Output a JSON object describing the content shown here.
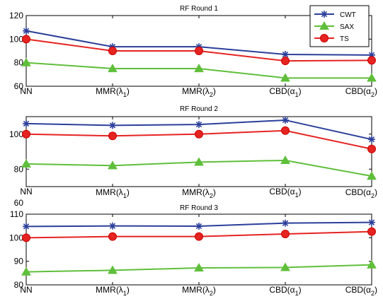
{
  "chart_data": [
    {
      "type": "line",
      "title": "RF Round 1",
      "categories": [
        "NN",
        "MMR(λ1)",
        "MMR(λ2)",
        "CBD(α1)",
        "CBD(α2)"
      ],
      "ylim": [
        60,
        120
      ],
      "yticks": [
        60,
        80,
        100,
        120
      ],
      "series": [
        {
          "name": "CWT",
          "values": [
            107,
            93.5,
            93.5,
            87,
            86.5
          ]
        },
        {
          "name": "SAX",
          "values": [
            80,
            75,
            75,
            67,
            67
          ]
        },
        {
          "name": "TS",
          "values": [
            100,
            90,
            90,
            81.5,
            82
          ]
        }
      ],
      "legend": "top-right",
      "grid": false
    },
    {
      "type": "line",
      "title": "RF Round 2",
      "categories": [
        "NN",
        "MMR(λ1)",
        "MMR(λ2)",
        "CBD(α1)",
        "CBD(α2)"
      ],
      "ylim": [
        70,
        110
      ],
      "yticks": [
        80,
        100
      ],
      "series": [
        {
          "name": "CWT",
          "values": [
            106,
            105,
            105.5,
            108,
            97
          ]
        },
        {
          "name": "SAX",
          "values": [
            83,
            82,
            84,
            85,
            76
          ]
        },
        {
          "name": "TS",
          "values": [
            100,
            99,
            100,
            102,
            91.5
          ]
        }
      ],
      "grid": false
    },
    {
      "type": "line",
      "title": "RF Round 3",
      "categories": [
        "NN",
        "MMR(λ1)",
        "MMR(λ2)",
        "CBD(α1)",
        "CBD(α2)"
      ],
      "ylim": [
        80,
        110
      ],
      "yticks": [
        80,
        90,
        100,
        110
      ],
      "series": [
        {
          "name": "CWT",
          "values": [
            104.8,
            105,
            104.9,
            106.2,
            106.5
          ]
        },
        {
          "name": "SAX",
          "values": [
            85.5,
            86.2,
            87.2,
            87.4,
            88.5
          ]
        },
        {
          "name": "TS",
          "values": [
            100,
            100.5,
            100.5,
            101.6,
            102.6
          ]
        }
      ],
      "grid": false
    }
  ],
  "stray_tick_label": "60",
  "category_labels": [
    {
      "base": "NN",
      "sub": ""
    },
    {
      "base": "MMR(λ",
      "sub": "1",
      "tail": ")"
    },
    {
      "base": "MMR(λ",
      "sub": "2",
      "tail": ")"
    },
    {
      "base": "CBD(α",
      "sub": "1",
      "tail": ")"
    },
    {
      "base": "CBD(α",
      "sub": "2",
      "tail": ")"
    }
  ],
  "legend": {
    "entries": [
      {
        "name": "CWT",
        "color": "#2b3f9a",
        "marker": "asterisk"
      },
      {
        "name": "SAX",
        "color": "#5fbf3a",
        "marker": "triangle"
      },
      {
        "name": "TS",
        "color": "#e52421",
        "marker": "circle"
      }
    ]
  },
  "colors": {
    "CWT": "#2b3f9a",
    "SAX": "#5fbf3a",
    "TS": "#e52421",
    "marker_edge": "#cc0000"
  }
}
